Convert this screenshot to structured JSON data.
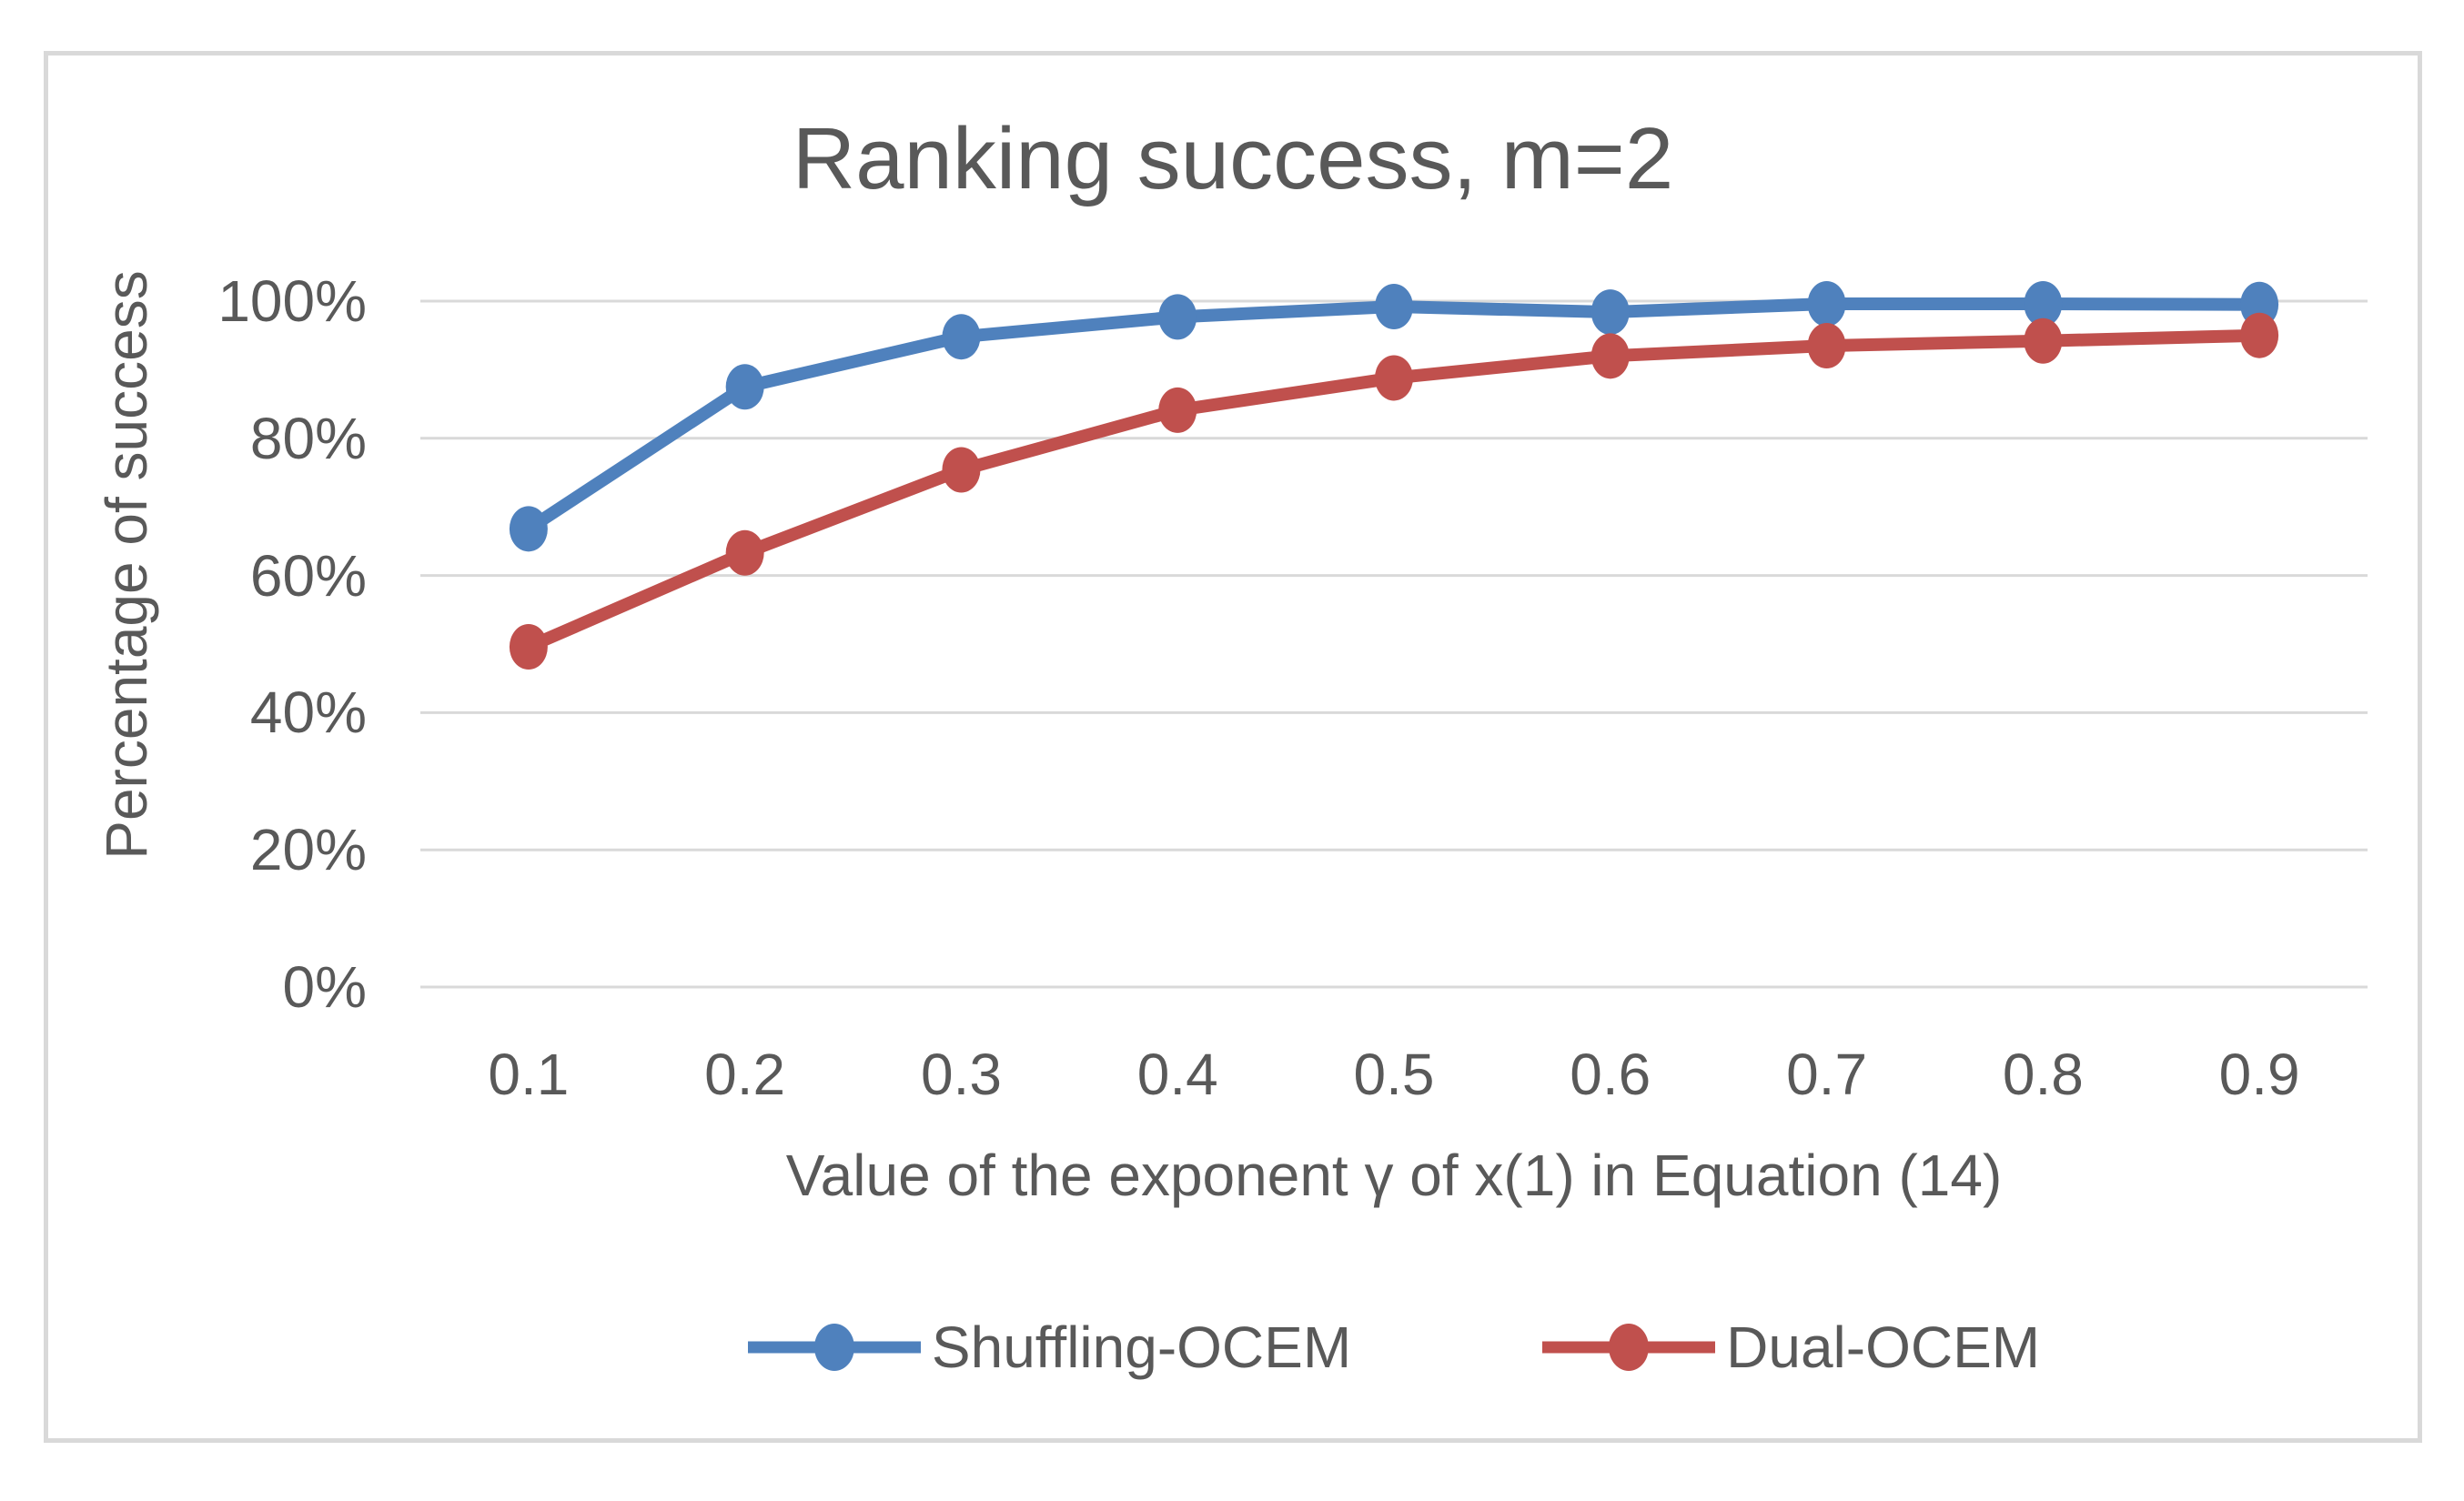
{
  "page": {
    "background": "#FFFFFF",
    "frame_border_color": "#D9D9D9"
  },
  "chart_data": {
    "type": "line",
    "title": "Ranking success, m=2",
    "xlabel": "Value of the exponent γ of x(1) in Equation (14)",
    "ylabel": "Percentage of success",
    "categories": [
      "0.1",
      "0.2",
      "0.3",
      "0.4",
      "0.5",
      "0.6",
      "0.7",
      "0.8",
      "0.9"
    ],
    "y_ticks": [
      "0%",
      "20%",
      "40%",
      "60%",
      "80%",
      "100%"
    ],
    "ylim": [
      0,
      100
    ],
    "grid": true,
    "legend_position": "bottom",
    "text_color": "#595959",
    "gridline_color": "#D9D9D9",
    "series": [
      {
        "name": "Shuffling-OCEM",
        "color": "#4F81BD",
        "values": [
          66.8,
          87.5,
          94.8,
          97.7,
          99.2,
          98.4,
          99.6,
          99.6,
          99.5
        ]
      },
      {
        "name": "Dual-OCEM",
        "color": "#C0504D",
        "values": [
          49.6,
          63.3,
          75.4,
          84.1,
          88.8,
          92.0,
          93.5,
          94.2,
          95.0
        ]
      }
    ]
  }
}
